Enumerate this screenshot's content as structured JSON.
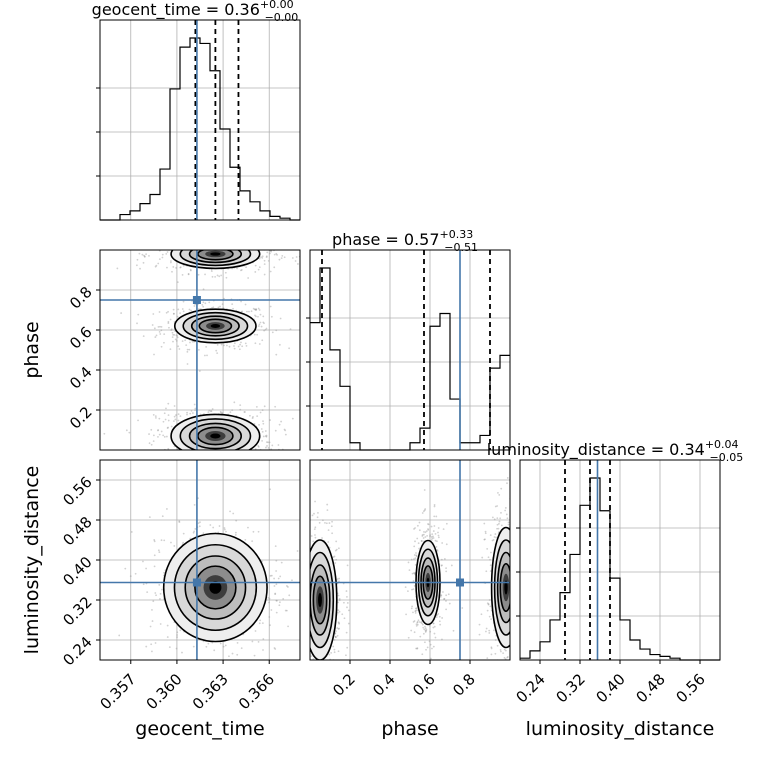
{
  "chart_data": {
    "type": "corner",
    "truth_color": "#4477aa",
    "parameters": [
      {
        "name": "geocent_time",
        "label": "geocent_time",
        "range": [
          0.355,
          0.368
        ],
        "ticks": [
          0.357,
          0.36,
          0.363,
          0.366
        ],
        "tick_labels": [
          "0.357",
          "0.360",
          "0.363",
          "0.366"
        ],
        "truth": 0.3613,
        "quantiles": [
          0.3612,
          0.3625,
          0.364
        ],
        "title": {
          "main": "geocent_time = 0.36",
          "sup": "+0.00",
          "sub": "−0.00"
        },
        "hist_edges_start": 0.355,
        "hist_bin_width": 0.00065,
        "hist": [
          0,
          0,
          3,
          5,
          9,
          14,
          28,
          72,
          95,
          100,
          97,
          82,
          50,
          29,
          16,
          10,
          5,
          2,
          1,
          0
        ]
      },
      {
        "name": "phase",
        "label": "phase",
        "range": [
          0.0,
          1.0
        ],
        "ticks": [
          0.2,
          0.4,
          0.6,
          0.8
        ],
        "tick_labels": [
          "0.2",
          "0.4",
          "0.6",
          "0.8"
        ],
        "truth": 0.75,
        "quantiles": [
          0.06,
          0.57,
          0.9
        ],
        "title": {
          "main": "phase = 0.57",
          "sup": "+0.33",
          "sub": "−0.51"
        },
        "hist_edges_start": 0.0,
        "hist_bin_width": 0.05,
        "hist": [
          70,
          100,
          55,
          35,
          4,
          0,
          0,
          0,
          0,
          0,
          4,
          12,
          68,
          75,
          28,
          4,
          4,
          8,
          45,
          52
        ]
      },
      {
        "name": "luminosity_distance",
        "label": "luminosity_distance",
        "range": [
          0.2,
          0.6
        ],
        "ticks": [
          0.24,
          0.32,
          0.4,
          0.48,
          0.56
        ],
        "tick_labels": [
          "0.24",
          "0.32",
          "0.40",
          "0.48",
          "0.56"
        ],
        "truth": 0.355,
        "quantiles": [
          0.29,
          0.34,
          0.38
        ],
        "title": {
          "main": "luminosity_distance = 0.34",
          "sup": "+0.04",
          "sub": "−0.05"
        },
        "hist_edges_start": 0.2,
        "hist_bin_width": 0.02,
        "hist": [
          1,
          5,
          10,
          22,
          37,
          58,
          85,
          100,
          82,
          45,
          22,
          11,
          6,
          3,
          2,
          1,
          0,
          0,
          0,
          0
        ]
      }
    ],
    "pair_blobs": {
      "1_0": [
        {
          "x": 0.3625,
          "y": 0.62,
          "sx": 0.0011,
          "sy": 0.035
        },
        {
          "x": 0.3625,
          "y": 0.07,
          "sx": 0.0012,
          "sy": 0.045
        },
        {
          "x": 0.3625,
          "y": 0.98,
          "sx": 0.0012,
          "sy": 0.03
        }
      ],
      "2_0": [
        {
          "x": 0.3625,
          "y": 0.345,
          "sx": 0.0014,
          "sy": 0.045
        }
      ],
      "2_1": [
        {
          "x": 0.05,
          "y": 0.32,
          "sx": 0.035,
          "sy": 0.05
        },
        {
          "x": 0.59,
          "y": 0.355,
          "sx": 0.025,
          "sy": 0.035
        },
        {
          "x": 0.98,
          "y": 0.345,
          "sx": 0.03,
          "sy": 0.05
        }
      ]
    },
    "grid": true
  }
}
